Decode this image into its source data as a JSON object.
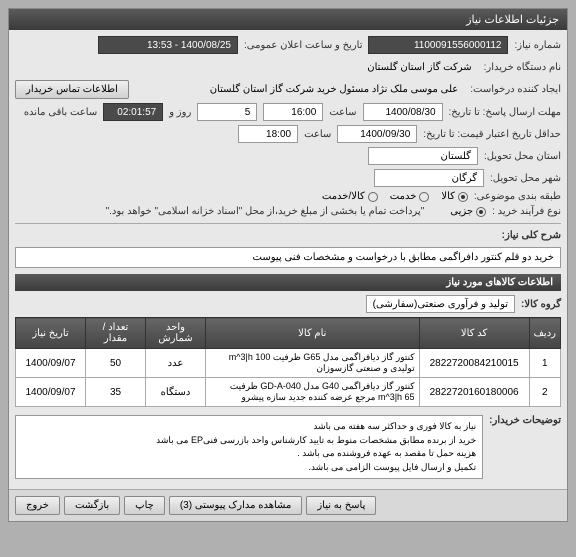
{
  "window": {
    "title": "جزئیات اطلاعات نیاز"
  },
  "fields": {
    "request_no_label": "شماره نیاز:",
    "request_no": "1100091556000112",
    "announce_label": "تاریخ و ساعت اعلان عمومی:",
    "announce_val": "1400/08/25 - 13:53",
    "buyer_org_label": "نام دستگاه خریدار:",
    "buyer_org": "شرکت گاز استان گلستان",
    "creator_label": "ایجاد کننده درخواست:",
    "creator": "علی موسی ملک نژاد مسئول خرید شرکت گاز استان گلستان",
    "contact_btn": "اطلاعات تماس خریدار",
    "deadline_label": "مهلت ارسال پاسخ: تا تاریخ:",
    "deadline_date": "1400/08/30",
    "time_label": "ساعت",
    "deadline_time": "16:00",
    "days_left": "5",
    "days_and": "روز و",
    "countdown": "02:01:57",
    "remain_label": "ساعت باقی مانده",
    "validity_label": "حداقل تاریخ اعتبار قیمت: تا تاریخ:",
    "validity_date": "1400/09/30",
    "validity_time": "18:00",
    "province_label": "استان محل تحویل:",
    "province": "گلستان",
    "city_label": "شهر محل تحویل:",
    "city": "گرگان",
    "subject_class_label": "طبقه بندی موضوعی:",
    "subject_goods": "کالا",
    "subject_service": "خدمت",
    "subject_both": "کالا/خدمت",
    "process_label": "نوع فرآیند خرید :",
    "process_partial": "جزیی",
    "process_note": "\"پرداخت تمام یا بخشی از مبلغ خرید،از محل \"اسناد خزانه اسلامی\" خواهد بود.\"",
    "desc_label": "شرح کلی نیاز:",
    "desc_text": "خرید دو قلم کنتور دافراگمی مطابق با درخواست و مشخصات فنی پیوست",
    "goods_section": "اطلاعات کالاهای مورد نیاز",
    "group_label": "گروه کالا:",
    "group_val": "تولید و فرآوری صنعتی(سفارشی)",
    "notes_label": "توضیحات خریدار:",
    "notes_lines": [
      "نیاز به کالا فوری و حداکثر سه هفته می باشد",
      "خرید از برنده مطابق مشخصات منوط به تایید کارشناس واحد بازرسی فنیEP می باشد",
      "هزینه حمل تا مقصد به عهده فروشنده می باشد .",
      "تکمیل و ارسال فایل پیوست الزامی می باشد."
    ]
  },
  "table": {
    "columns": [
      "ردیف",
      "کد کالا",
      "نام کالا",
      "واحد شمارش",
      "تعداد / مقدار",
      "تاریخ نیاز"
    ],
    "rows": [
      [
        "1",
        "2822720084210015",
        "کنتور گاز دیافراگمی مدل G65 ظرفیت m^3|h 100 تولیدی و صنعتی گازسوزان",
        "عدد",
        "50",
        "1400/09/07"
      ],
      [
        "2",
        "2822720160180006",
        "کنتور گاز دیافراگمی G40 مدل GD-A-040 ظرفیت m^3|h 65 مرجع عرضه کننده جدید سازه پیشرو",
        "دستگاه",
        "35",
        "1400/09/07"
      ]
    ]
  },
  "buttons": {
    "respond": "پاسخ به نیاز",
    "attachments": "مشاهده مدارک پیوستی (3)",
    "print": "چاپ",
    "back": "بازگشت",
    "exit": "خروج"
  }
}
